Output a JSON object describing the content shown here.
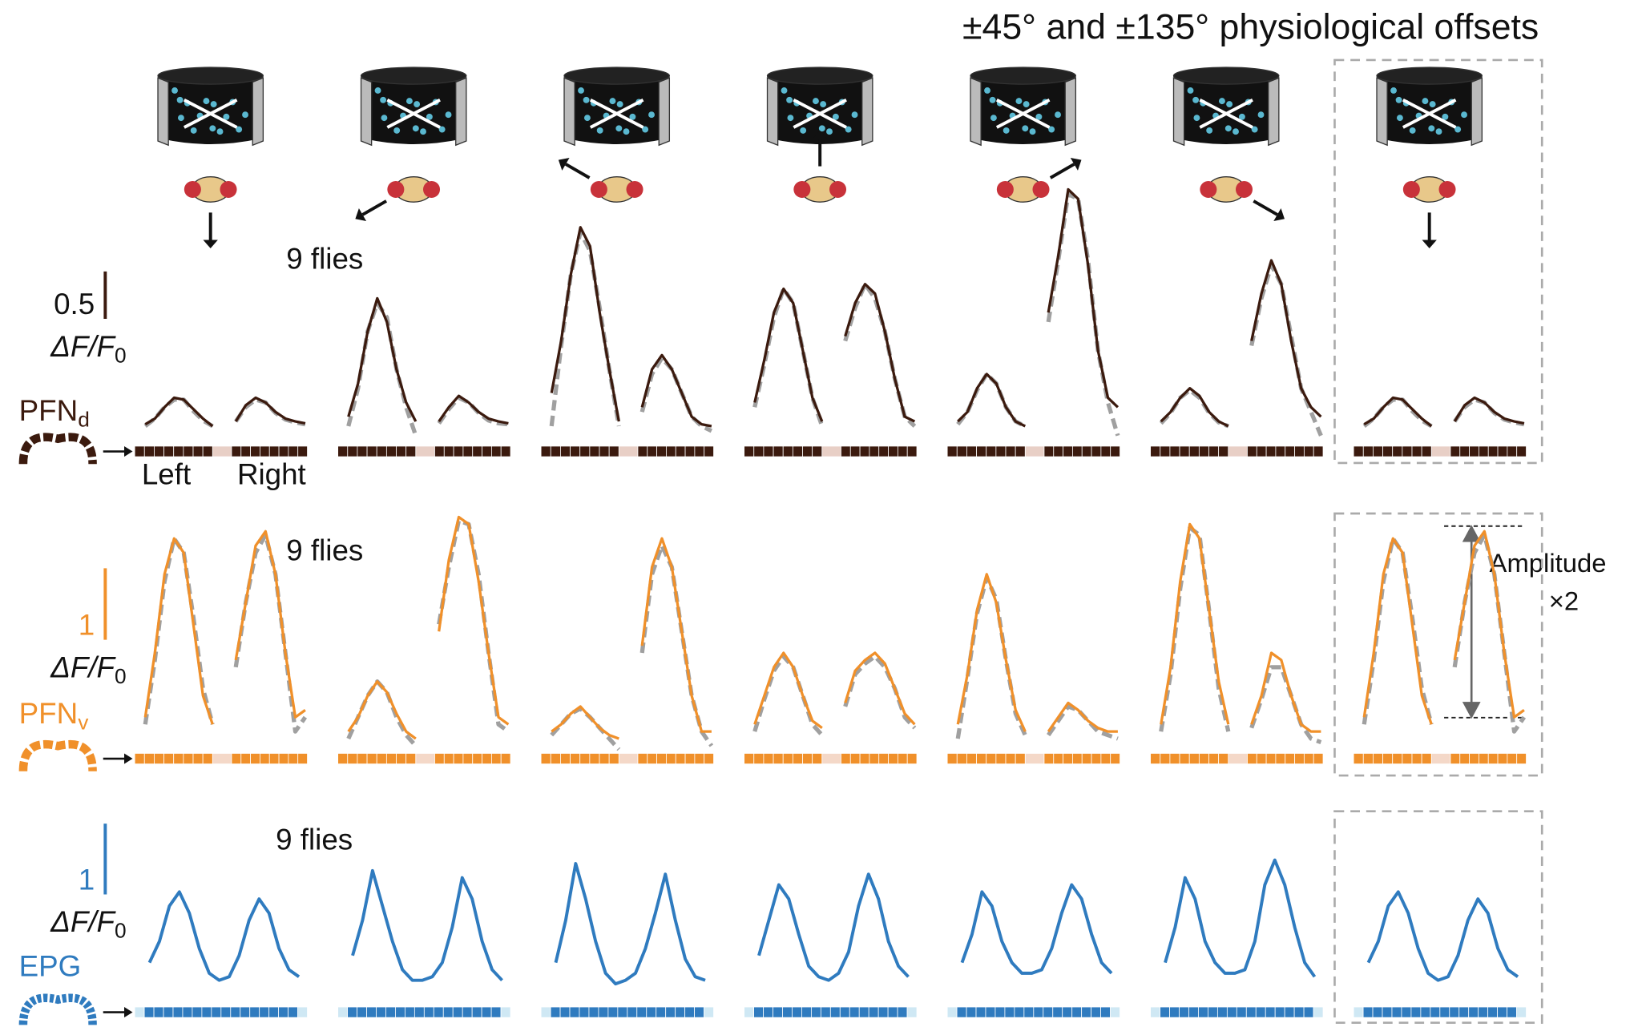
{
  "title": "±45° and ±135° physiological offsets",
  "labels": {
    "left": "Left",
    "right": "Right"
  },
  "amplitude_note": {
    "text": "Amplitude",
    "factor": "×2"
  },
  "chart_data": [
    {
      "type": "line",
      "name": "PFN",
      "name_sub": "d",
      "scale_bar": 0.5,
      "unit": "ΔF/F",
      "unit_sub": "0",
      "annotation": "9 flies",
      "color": "#3b1a0e",
      "model_color": "#a0a0a0",
      "ylim": [
        0,
        2.6
      ],
      "panels": [
        {
          "left": [
            0.02,
            0.08,
            0.2,
            0.3,
            0.28,
            0.18,
            0.08,
            0.0
          ],
          "right": [
            0.05,
            0.22,
            0.3,
            0.25,
            0.15,
            0.08,
            0.05,
            0.03
          ],
          "left_model": [
            0.0,
            0.08,
            0.2,
            0.28,
            0.28,
            0.16,
            0.06,
            0.0
          ],
          "right_model": [
            0.05,
            0.2,
            0.28,
            0.25,
            0.14,
            0.07,
            0.04,
            0.02
          ]
        },
        {
          "left": [
            0.1,
            0.45,
            1.0,
            1.35,
            1.1,
            0.6,
            0.25,
            0.05
          ],
          "right": [
            0.05,
            0.2,
            0.32,
            0.25,
            0.15,
            0.08,
            0.05,
            0.03
          ],
          "left_model": [
            0.0,
            0.4,
            1.0,
            1.3,
            1.15,
            0.6,
            0.2,
            -0.1
          ],
          "right_model": [
            0.03,
            0.18,
            0.3,
            0.25,
            0.14,
            0.06,
            0.03,
            0.02
          ]
        },
        {
          "left": [
            0.35,
            0.9,
            1.6,
            2.1,
            1.9,
            1.2,
            0.6,
            0.05
          ],
          "right": [
            0.2,
            0.6,
            0.75,
            0.6,
            0.35,
            0.1,
            0.02,
            0.0
          ],
          "left_model": [
            0.0,
            0.85,
            1.6,
            2.05,
            1.85,
            1.25,
            0.6,
            0.0
          ],
          "right_model": [
            0.15,
            0.55,
            0.72,
            0.6,
            0.35,
            0.1,
            0.0,
            -0.05
          ]
        },
        {
          "left": [
            0.25,
            0.7,
            1.2,
            1.45,
            1.3,
            0.8,
            0.3,
            0.05
          ],
          "right": [
            0.95,
            1.3,
            1.5,
            1.4,
            1.0,
            0.5,
            0.1,
            0.05
          ],
          "left_model": [
            0.2,
            0.65,
            1.15,
            1.45,
            1.3,
            0.8,
            0.3,
            0.0
          ],
          "right_model": [
            0.9,
            1.25,
            1.5,
            1.35,
            1.0,
            0.5,
            0.1,
            0.0
          ]
        },
        {
          "left": [
            0.05,
            0.15,
            0.4,
            0.55,
            0.45,
            0.2,
            0.05,
            0.0
          ],
          "right": [
            1.2,
            1.8,
            2.5,
            2.4,
            1.7,
            0.8,
            0.3,
            0.2
          ],
          "left_model": [
            0.02,
            0.15,
            0.38,
            0.55,
            0.45,
            0.2,
            0.05,
            0.0
          ],
          "right_model": [
            1.1,
            1.75,
            2.45,
            2.4,
            1.75,
            0.8,
            0.25,
            -0.1
          ]
        },
        {
          "left": [
            0.05,
            0.15,
            0.3,
            0.4,
            0.32,
            0.15,
            0.05,
            0.0
          ],
          "right": [
            0.9,
            1.4,
            1.75,
            1.5,
            0.9,
            0.4,
            0.2,
            0.1
          ],
          "left_model": [
            0.03,
            0.14,
            0.3,
            0.38,
            0.3,
            0.14,
            0.04,
            0.0
          ],
          "right_model": [
            0.85,
            1.35,
            1.7,
            1.5,
            0.95,
            0.4,
            0.15,
            -0.1
          ]
        },
        {
          "left": [
            0.02,
            0.08,
            0.2,
            0.3,
            0.28,
            0.18,
            0.08,
            0.0
          ],
          "right": [
            0.05,
            0.22,
            0.3,
            0.25,
            0.15,
            0.08,
            0.05,
            0.03
          ],
          "left_model": [
            0.0,
            0.08,
            0.2,
            0.28,
            0.28,
            0.16,
            0.06,
            0.0
          ],
          "right_model": [
            0.05,
            0.2,
            0.28,
            0.25,
            0.14,
            0.07,
            0.04,
            0.02
          ]
        }
      ]
    },
    {
      "type": "line",
      "name": "PFN",
      "name_sub": "v",
      "scale_bar": 1,
      "unit": "ΔF/F",
      "unit_sub": "0",
      "annotation": "9 flies",
      "color": "#f0902a",
      "model_color": "#a0a0a0",
      "ylim": [
        0,
        3.4
      ],
      "panels": [
        {
          "left": [
            0.3,
            1.2,
            2.3,
            2.8,
            2.6,
            1.6,
            0.6,
            0.2
          ],
          "right": [
            1.1,
            1.9,
            2.7,
            2.9,
            2.3,
            1.2,
            0.3,
            0.4
          ],
          "left_model": [
            0.2,
            1.1,
            2.2,
            2.8,
            2.6,
            1.7,
            0.7,
            0.2
          ],
          "right_model": [
            1.0,
            1.9,
            2.6,
            2.85,
            2.3,
            1.2,
            0.1,
            0.3
          ]
        },
        {
          "left": [
            0.1,
            0.3,
            0.6,
            0.8,
            0.65,
            0.35,
            0.1,
            0.0
          ],
          "right": [
            1.5,
            2.5,
            3.1,
            3.0,
            2.2,
            1.2,
            0.3,
            0.2
          ],
          "left_model": [
            0.0,
            0.3,
            0.6,
            0.8,
            0.65,
            0.3,
            0.05,
            -0.1
          ],
          "right_model": [
            1.6,
            2.4,
            3.05,
            3.0,
            2.3,
            1.2,
            0.2,
            0.1
          ]
        },
        {
          "left": [
            0.1,
            0.2,
            0.35,
            0.45,
            0.3,
            0.15,
            0.05,
            0.0
          ],
          "right": [
            1.3,
            2.4,
            2.8,
            2.4,
            1.5,
            0.6,
            0.1,
            0.1
          ],
          "left_model": [
            0.05,
            0.2,
            0.35,
            0.42,
            0.3,
            0.15,
            0.0,
            -0.15
          ],
          "right_model": [
            1.2,
            2.3,
            2.7,
            2.4,
            1.5,
            0.6,
            0.1,
            -0.1
          ]
        },
        {
          "left": [
            0.2,
            0.6,
            1.0,
            1.2,
            1.0,
            0.6,
            0.25,
            0.15
          ],
          "right": [
            0.5,
            0.95,
            1.1,
            1.2,
            1.05,
            0.7,
            0.35,
            0.2
          ],
          "left_model": [
            0.1,
            0.55,
            0.95,
            1.15,
            1.0,
            0.6,
            0.2,
            0.05
          ],
          "right_model": [
            0.45,
            0.9,
            1.05,
            1.15,
            1.0,
            0.7,
            0.3,
            0.15
          ]
        },
        {
          "left": [
            0.2,
            0.9,
            1.8,
            2.3,
            1.9,
            1.1,
            0.4,
            0.1
          ],
          "right": [
            0.1,
            0.3,
            0.5,
            0.4,
            0.25,
            0.15,
            0.1,
            0.1
          ],
          "left_model": [
            0.0,
            0.85,
            1.75,
            2.25,
            1.95,
            1.1,
            0.35,
            0.05
          ],
          "right_model": [
            0.05,
            0.25,
            0.45,
            0.4,
            0.25,
            0.1,
            0.05,
            0.0
          ]
        },
        {
          "left": [
            0.2,
            1.0,
            2.2,
            3.0,
            2.8,
            1.8,
            0.8,
            0.2
          ],
          "right": [
            0.2,
            0.6,
            1.2,
            1.1,
            0.6,
            0.2,
            0.1,
            0.1
          ],
          "left_model": [
            0.1,
            0.9,
            2.1,
            2.95,
            2.85,
            1.8,
            0.7,
            0.1
          ],
          "right_model": [
            0.15,
            0.55,
            1.0,
            1.0,
            0.6,
            0.2,
            0.0,
            -0.05
          ]
        },
        {
          "left": [
            0.3,
            1.2,
            2.3,
            2.8,
            2.6,
            1.6,
            0.6,
            0.2
          ],
          "right": [
            1.1,
            1.9,
            2.7,
            2.9,
            2.3,
            1.2,
            0.3,
            0.4
          ],
          "left_model": [
            0.2,
            1.1,
            2.2,
            2.8,
            2.6,
            1.7,
            0.7,
            0.2
          ],
          "right_model": [
            1.0,
            1.9,
            2.6,
            2.85,
            2.3,
            1.2,
            0.1,
            0.3
          ]
        }
      ]
    },
    {
      "type": "line",
      "name": "EPG",
      "scale_bar": 1,
      "unit": "ΔF/F",
      "unit_sub": "0",
      "annotation": "9 flies",
      "color": "#2f7bbf",
      "ylim": [
        0,
        1.8
      ],
      "panels": [
        {
          "values": [
            0.3,
            0.6,
            1.1,
            1.3,
            1.0,
            0.5,
            0.15,
            0.05,
            0.1,
            0.4,
            0.9,
            1.2,
            1.0,
            0.5,
            0.2,
            0.1
          ]
        },
        {
          "values": [
            0.4,
            0.9,
            1.6,
            1.1,
            0.6,
            0.2,
            0.05,
            0.05,
            0.1,
            0.3,
            0.8,
            1.5,
            1.2,
            0.6,
            0.2,
            0.05
          ]
        },
        {
          "values": [
            0.3,
            0.9,
            1.7,
            1.2,
            0.6,
            0.15,
            0.0,
            0.05,
            0.15,
            0.5,
            1.0,
            1.55,
            0.9,
            0.35,
            0.1,
            0.05
          ]
        },
        {
          "values": [
            0.4,
            0.9,
            1.4,
            1.2,
            0.7,
            0.25,
            0.1,
            0.05,
            0.15,
            0.45,
            1.1,
            1.55,
            1.2,
            0.6,
            0.25,
            0.1
          ]
        },
        {
          "values": [
            0.3,
            0.7,
            1.3,
            1.1,
            0.6,
            0.3,
            0.15,
            0.15,
            0.2,
            0.5,
            1.0,
            1.4,
            1.2,
            0.7,
            0.3,
            0.15
          ]
        },
        {
          "values": [
            0.3,
            0.8,
            1.5,
            1.2,
            0.6,
            0.3,
            0.15,
            0.15,
            0.2,
            0.6,
            1.4,
            1.75,
            1.4,
            0.8,
            0.3,
            0.1
          ]
        },
        {
          "values": [
            0.3,
            0.6,
            1.1,
            1.3,
            1.0,
            0.5,
            0.15,
            0.05,
            0.1,
            0.4,
            0.9,
            1.2,
            1.0,
            0.5,
            0.2,
            0.1
          ]
        }
      ]
    }
  ]
}
